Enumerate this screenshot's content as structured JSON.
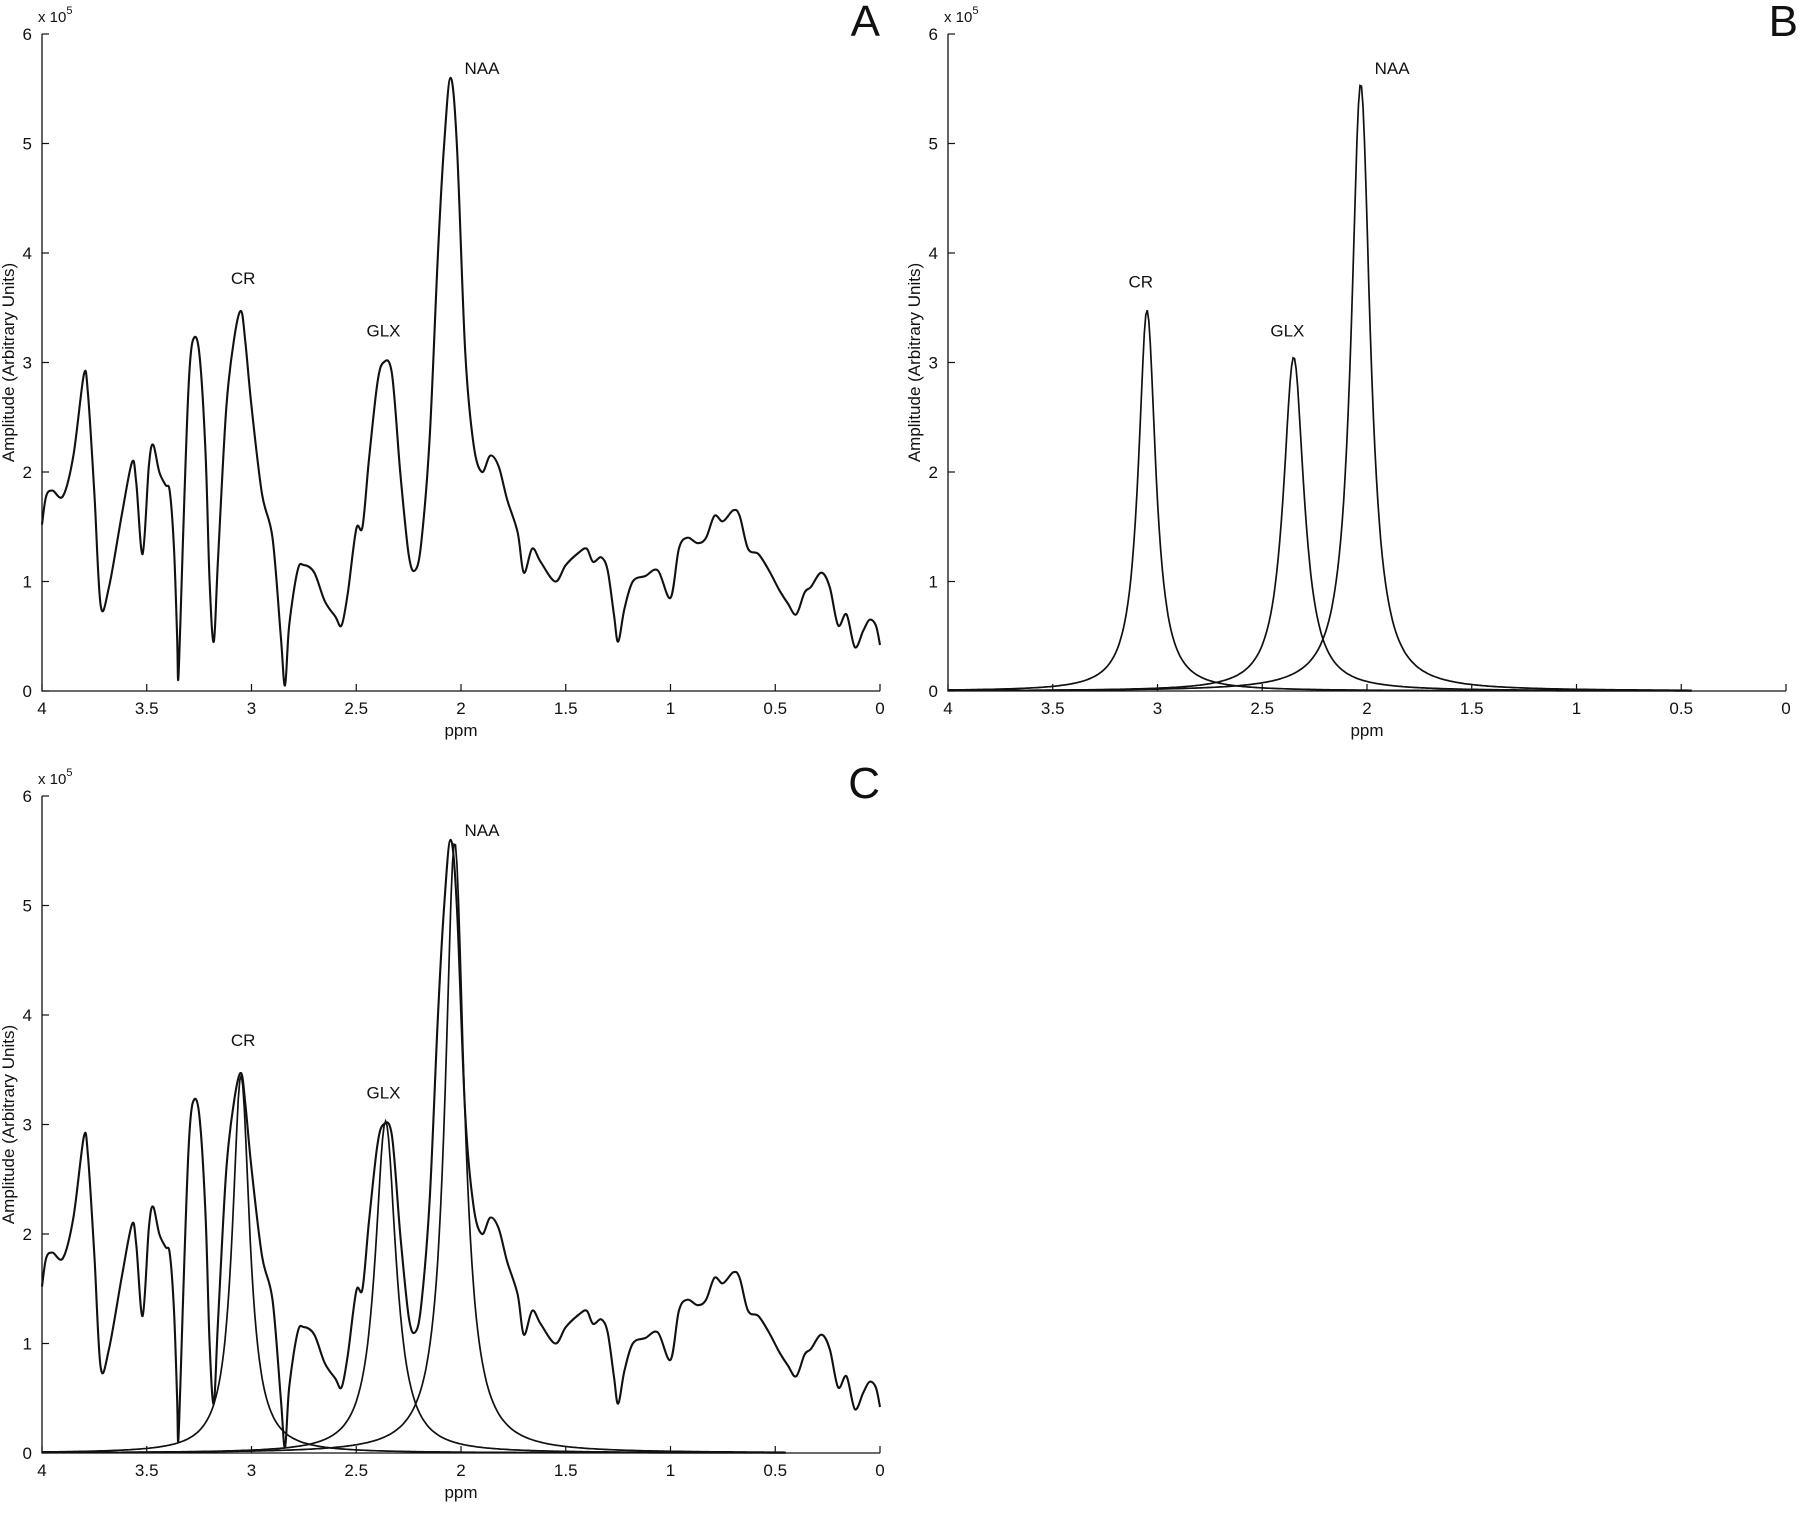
{
  "chart_data": [
    {
      "panel": "A",
      "type": "line",
      "xlabel": "ppm",
      "ylabel": "Amplitude (Arbitrary Units)",
      "y_multiplier": "x 10",
      "y_exponent": "5",
      "xlim": [
        4,
        0
      ],
      "ylim": [
        0,
        600000
      ],
      "x_ticks": [
        "4",
        "3.5",
        "3",
        "2.5",
        "2",
        "1.5",
        "1",
        "0.5",
        "0"
      ],
      "y_ticks": [
        "0",
        "1",
        "2",
        "3",
        "4",
        "5",
        "6"
      ],
      "peak_labels": [
        {
          "text": "CR",
          "x": 3.04,
          "y": 368000
        },
        {
          "text": "GLX",
          "x": 2.37,
          "y": 320000
        },
        {
          "text": "NAA",
          "x": 1.9,
          "y": 560000
        }
      ],
      "series": [
        {
          "kind": "spectrum",
          "points": [
            [
              4.0,
              152000
            ],
            [
              3.98,
              178000
            ],
            [
              3.95,
              183000
            ],
            [
              3.9,
              178000
            ],
            [
              3.85,
              215000
            ],
            [
              3.8,
              289000
            ],
            [
              3.78,
              270000
            ],
            [
              3.75,
              180000
            ],
            [
              3.72,
              78000
            ],
            [
              3.68,
              95000
            ],
            [
              3.62,
              160000
            ],
            [
              3.57,
              209000
            ],
            [
              3.55,
              190000
            ],
            [
              3.52,
              125000
            ],
            [
              3.49,
              205000
            ],
            [
              3.47,
              225000
            ],
            [
              3.44,
              200000
            ],
            [
              3.41,
              188000
            ],
            [
              3.39,
              182000
            ],
            [
              3.37,
              130000
            ],
            [
              3.355,
              50000
            ],
            [
              3.35,
              10000
            ],
            [
              3.34,
              60000
            ],
            [
              3.32,
              180000
            ],
            [
              3.3,
              280000
            ],
            [
              3.28,
              320000
            ],
            [
              3.25,
              310000
            ],
            [
              3.22,
              220000
            ],
            [
              3.2,
              100000
            ],
            [
              3.18,
              45000
            ],
            [
              3.16,
              120000
            ],
            [
              3.12,
              260000
            ],
            [
              3.08,
              325000
            ],
            [
              3.05,
              347000
            ],
            [
              3.03,
              320000
            ],
            [
              3.0,
              260000
            ],
            [
              2.95,
              180000
            ],
            [
              2.9,
              140000
            ],
            [
              2.86,
              50000
            ],
            [
              2.84,
              5000
            ],
            [
              2.82,
              60000
            ],
            [
              2.78,
              110000
            ],
            [
              2.75,
              115000
            ],
            [
              2.7,
              108000
            ],
            [
              2.65,
              82000
            ],
            [
              2.6,
              68000
            ],
            [
              2.57,
              60000
            ],
            [
              2.54,
              90000
            ],
            [
              2.5,
              148000
            ],
            [
              2.47,
              150000
            ],
            [
              2.44,
              210000
            ],
            [
              2.4,
              280000
            ],
            [
              2.37,
              300000
            ],
            [
              2.33,
              290000
            ],
            [
              2.29,
              200000
            ],
            [
              2.25,
              125000
            ],
            [
              2.22,
              110000
            ],
            [
              2.19,
              135000
            ],
            [
              2.15,
              230000
            ],
            [
              2.11,
              400000
            ],
            [
              2.08,
              500000
            ],
            [
              2.05,
              560000
            ],
            [
              2.02,
              500000
            ],
            [
              1.98,
              310000
            ],
            [
              1.94,
              225000
            ],
            [
              1.9,
              200000
            ],
            [
              1.86,
              215000
            ],
            [
              1.82,
              205000
            ],
            [
              1.78,
              175000
            ],
            [
              1.73,
              145000
            ],
            [
              1.7,
              108000
            ],
            [
              1.66,
              130000
            ],
            [
              1.62,
              118000
            ],
            [
              1.55,
              100000
            ],
            [
              1.5,
              115000
            ],
            [
              1.44,
              126000
            ],
            [
              1.4,
              130000
            ],
            [
              1.37,
              118000
            ],
            [
              1.33,
              122000
            ],
            [
              1.3,
              110000
            ],
            [
              1.27,
              70000
            ],
            [
              1.25,
              45000
            ],
            [
              1.22,
              75000
            ],
            [
              1.18,
              100000
            ],
            [
              1.12,
              105000
            ],
            [
              1.06,
              110000
            ],
            [
              1.0,
              85000
            ],
            [
              0.96,
              130000
            ],
            [
              0.92,
              140000
            ],
            [
              0.87,
              135000
            ],
            [
              0.83,
              140000
            ],
            [
              0.79,
              160000
            ],
            [
              0.75,
              155000
            ],
            [
              0.7,
              165000
            ],
            [
              0.67,
              160000
            ],
            [
              0.63,
              130000
            ],
            [
              0.58,
              125000
            ],
            [
              0.53,
              110000
            ],
            [
              0.48,
              92000
            ],
            [
              0.44,
              80000
            ],
            [
              0.4,
              70000
            ],
            [
              0.36,
              90000
            ],
            [
              0.33,
              95000
            ],
            [
              0.28,
              108000
            ],
            [
              0.24,
              95000
            ],
            [
              0.2,
              60000
            ],
            [
              0.16,
              70000
            ],
            [
              0.12,
              40000
            ],
            [
              0.08,
              55000
            ],
            [
              0.05,
              65000
            ],
            [
              0.02,
              60000
            ],
            [
              0.0,
              42000
            ]
          ]
        }
      ]
    },
    {
      "panel": "B",
      "type": "line",
      "xlabel": "ppm",
      "ylabel": "Amplitude (Arbitrary Units)",
      "y_multiplier": "x 10",
      "y_exponent": "5",
      "xlim": [
        4,
        0
      ],
      "ylim": [
        0,
        600000
      ],
      "x_ticks": [
        "4",
        "3.5",
        "3",
        "2.5",
        "2",
        "1.5",
        "1",
        "0.5",
        "0"
      ],
      "y_ticks": [
        "0",
        "1",
        "2",
        "3",
        "4",
        "5",
        "6"
      ],
      "peak_labels": [
        {
          "text": "CR",
          "x": 3.08,
          "y": 365000
        },
        {
          "text": "GLX",
          "x": 2.38,
          "y": 320000
        },
        {
          "text": "NAA",
          "x": 1.88,
          "y": 560000
        }
      ],
      "series": [
        {
          "kind": "lorentzian",
          "center": 3.05,
          "amplitude": 348000,
          "hwhm": 0.05,
          "x_range": [
            4.0,
            0.45
          ]
        },
        {
          "kind": "lorentzian",
          "center": 2.35,
          "amplitude": 305000,
          "hwhm": 0.06,
          "x_range": [
            4.0,
            0.45
          ]
        },
        {
          "kind": "lorentzian",
          "center": 2.03,
          "amplitude": 555000,
          "hwhm": 0.055,
          "x_range": [
            4.0,
            0.45
          ]
        }
      ]
    },
    {
      "panel": "C",
      "type": "line",
      "xlabel": "ppm",
      "ylabel": "Amplitude (Arbitrary Units)",
      "y_multiplier": "x 10",
      "y_exponent": "5",
      "xlim": [
        4,
        0
      ],
      "ylim": [
        0,
        600000
      ],
      "x_ticks": [
        "4",
        "3.5",
        "3",
        "2.5",
        "2",
        "1.5",
        "1",
        "0.5",
        "0"
      ],
      "y_ticks": [
        "0",
        "1",
        "2",
        "3",
        "4",
        "5",
        "6"
      ],
      "peak_labels": [
        {
          "text": "CR",
          "x": 3.04,
          "y": 368000
        },
        {
          "text": "GLX",
          "x": 2.37,
          "y": 320000
        },
        {
          "text": "NAA",
          "x": 1.9,
          "y": 560000
        }
      ],
      "series": [
        {
          "kind": "spectrum",
          "same_as_panel": "A"
        },
        {
          "kind": "lorentzian",
          "center": 3.05,
          "amplitude": 345000,
          "hwhm": 0.05,
          "x_range": [
            4.0,
            0.45
          ]
        },
        {
          "kind": "lorentzian",
          "center": 2.36,
          "amplitude": 303000,
          "hwhm": 0.06,
          "x_range": [
            4.0,
            0.45
          ]
        },
        {
          "kind": "lorentzian",
          "center": 2.03,
          "amplitude": 558000,
          "hwhm": 0.055,
          "x_range": [
            4.0,
            0.45
          ]
        }
      ]
    }
  ]
}
